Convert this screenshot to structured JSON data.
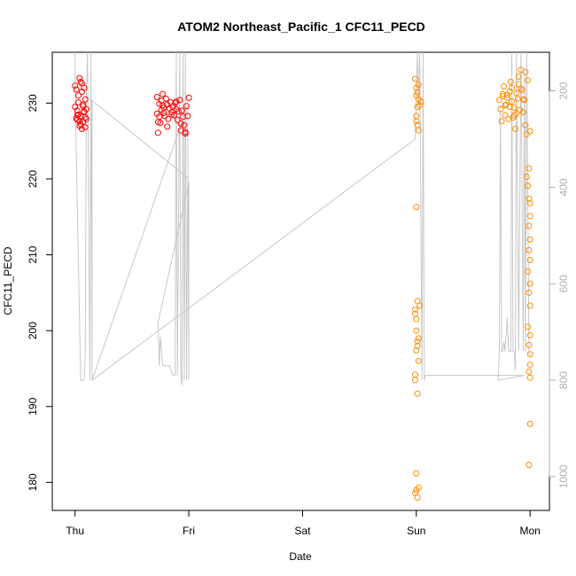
{
  "chart_data": {
    "type": "scatter",
    "title": "ATOM2 Northeast_Pacific_1 CFC11_PECD",
    "xlabel": "Date",
    "ylabel": "CFC11_PECD",
    "x_ticks": [
      "Thu",
      "Fri",
      "Sat",
      "Sun",
      "Mon"
    ],
    "x_range_days": [
      -0.2,
      4.17
    ],
    "y_ticks": [
      180,
      190,
      200,
      210,
      220,
      230
    ],
    "ylim": [
      176.3,
      236.7
    ],
    "y2_ticks": [
      200,
      400,
      600,
      800,
      1000
    ],
    "y2lim_reversed": [
      1070,
      120
    ],
    "grid": false,
    "legend": "none",
    "colors": {
      "series_1": "#ff0000",
      "series_2": "#ff8c00",
      "depth_line": "#c8c8c8",
      "axis": "#000000",
      "right_axis": "#b0b0b0"
    },
    "series": [
      {
        "x": [
          0.0,
          0.0,
          0.01,
          0.01,
          0.02,
          0.02,
          0.03,
          0.03,
          0.04,
          0.04,
          0.05,
          0.05,
          0.06,
          0.06,
          0.07,
          0.07,
          0.08,
          0.08,
          0.09,
          0.09,
          0.1,
          0.1,
          0.02,
          0.04,
          0.06,
          0.08,
          0.03,
          0.05,
          0.07,
          0.09,
          0.72,
          0.72,
          0.73,
          0.74,
          0.74,
          0.75,
          0.76,
          0.76,
          0.77,
          0.78,
          0.78,
          0.79,
          0.8,
          0.81,
          0.82,
          0.83,
          0.84,
          0.85,
          0.86,
          0.87,
          0.88,
          0.89,
          0.9,
          0.91,
          0.92,
          0.93,
          0.94,
          0.95,
          0.96,
          0.97,
          0.98,
          0.99,
          1.0,
          0.73,
          0.77,
          0.81,
          0.85,
          0.89,
          0.93,
          0.97
        ],
        "y": [
          232.3,
          229.5,
          228.0,
          231.8,
          227.8,
          229.0,
          230.1,
          228.5,
          233.3,
          227.0,
          232.8,
          228.3,
          226.6,
          231.5,
          229.8,
          227.5,
          232.0,
          228.8,
          230.5,
          226.8,
          229.2,
          227.9,
          228.4,
          227.6,
          232.6,
          228.9,
          231.0,
          227.2,
          229.6,
          228.1,
          230.8,
          228.6,
          226.1,
          229.9,
          228.2,
          227.4,
          230.3,
          229.1,
          231.2,
          228.7,
          229.4,
          228.3,
          230.6,
          229.8,
          227.9,
          229.3,
          230.1,
          228.8,
          229.5,
          228.4,
          230.0,
          229.2,
          227.8,
          228.9,
          230.4,
          226.4,
          229.0,
          228.2,
          227.1,
          226.0,
          229.6,
          228.3,
          230.7,
          227.5,
          229.7,
          226.9,
          228.5,
          230.2,
          227.3,
          226.2
        ],
        "color": "#ff0000"
      },
      {
        "x": [
          2.99,
          3.0,
          3.01,
          3.02,
          3.03,
          3.04,
          3.0,
          3.01,
          3.02,
          3.0,
          3.01,
          3.03,
          2.99,
          3.0,
          3.02,
          3.01,
          3.0,
          3.02,
          2.99,
          3.01,
          3.0,
          3.02,
          2.99,
          3.01,
          3.0,
          3.01,
          3.02,
          3.0,
          2.99,
          3.01,
          3.0,
          2.99,
          3.0,
          3.73,
          3.74,
          3.75,
          3.76,
          3.77,
          3.78,
          3.79,
          3.8,
          3.81,
          3.82,
          3.83,
          3.84,
          3.85,
          3.86,
          3.87,
          3.88,
          3.89,
          3.9,
          3.91,
          3.92,
          3.93,
          3.94,
          3.95,
          3.96,
          3.97,
          3.98,
          3.76,
          3.8,
          3.84,
          3.88,
          3.92,
          3.96,
          3.78,
          3.82,
          3.86,
          3.9,
          3.94,
          3.97,
          3.98,
          3.99,
          4.0,
          4.0,
          3.99,
          4.0,
          3.99,
          4.0,
          3.98,
          4.0,
          3.99,
          4.0,
          3.98,
          4.0,
          3.99,
          4.0,
          4.0,
          3.99,
          4.0,
          4.0,
          3.99,
          3.99,
          4.0
        ],
        "y": [
          233.2,
          232.0,
          231.4,
          230.5,
          229.7,
          230.2,
          228.3,
          227.1,
          226.4,
          216.3,
          203.9,
          203.3,
          202.8,
          201.5,
          199.0,
          198.6,
          197.4,
          196.0,
          194.2,
          191.7,
          181.2,
          179.3,
          178.6,
          178.0,
          231.0,
          229.5,
          232.4,
          227.6,
          202.2,
          198.0,
          200.0,
          193.5,
          179.0,
          230.4,
          229.2,
          227.6,
          230.9,
          232.2,
          228.4,
          229.8,
          231.1,
          227.9,
          229.5,
          232.8,
          230.2,
          228.1,
          229.4,
          226.6,
          231.3,
          230.6,
          232.5,
          229.1,
          234.4,
          231.7,
          228.8,
          230.4,
          227.1,
          225.9,
          233.0,
          231.2,
          230.7,
          232.0,
          228.6,
          231.9,
          234.1,
          229.7,
          231.5,
          228.4,
          233.5,
          230.5,
          220.3,
          219.1,
          217.4,
          216.8,
          215.1,
          213.8,
          212.0,
          210.6,
          209.3,
          207.8,
          206.2,
          205.0,
          203.3,
          200.5,
          199.4,
          198.1,
          196.9,
          195.5,
          194.6,
          193.8,
          187.7,
          182.3,
          221.4,
          226.3
        ],
        "color": "#ff8c00"
      }
    ],
    "depth_profile": {
      "axis": "right",
      "x": [
        0.0,
        0.0,
        0.05,
        0.08,
        0.09,
        0.1,
        0.11,
        0.12,
        0.13,
        0.14,
        0.15,
        0.99,
        1.0,
        1.0,
        0.73,
        0.74,
        0.75,
        0.76,
        0.77,
        0.8,
        0.83,
        0.86,
        0.88,
        0.89,
        0.9,
        0.92,
        0.93,
        0.94,
        0.95,
        0.96,
        0.97,
        0.98,
        0.99,
        0.15,
        0.15,
        2.99,
        3.0,
        3.01,
        3.02,
        3.03,
        3.05,
        3.06,
        3.07,
        3.08,
        3.75,
        3.95,
        3.72,
        3.73,
        3.74,
        3.75,
        3.76,
        3.77,
        3.78,
        3.8,
        3.81,
        3.83,
        3.84,
        3.85,
        3.86,
        3.87,
        3.88,
        3.9,
        3.92,
        3.94,
        3.95,
        3.96,
        3.97,
        3.99,
        4.0
      ],
      "depth": [
        120,
        200,
        800,
        800,
        750,
        200,
        120,
        450,
        800,
        120,
        800,
        230,
        800,
        390,
        680,
        770,
        710,
        740,
        770,
        770,
        770,
        790,
        790,
        120,
        790,
        120,
        790,
        810,
        120,
        800,
        120,
        800,
        380,
        220,
        800,
        300,
        200,
        120,
        230,
        120,
        800,
        120,
        800,
        790,
        790,
        790,
        800,
        740,
        230,
        740,
        740,
        720,
        740,
        670,
        740,
        740,
        120,
        740,
        740,
        780,
        120,
        740,
        120,
        740,
        160,
        740,
        120,
        740,
        750
      ],
      "color": "#c8c8c8"
    }
  }
}
